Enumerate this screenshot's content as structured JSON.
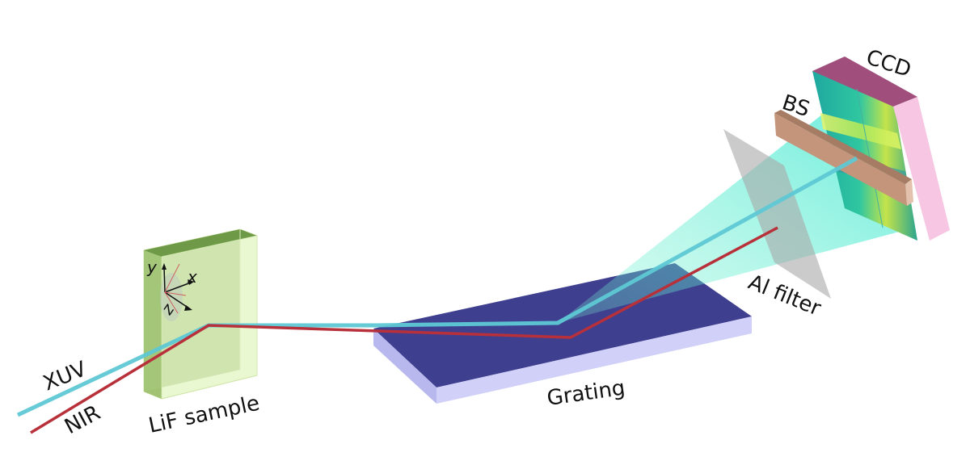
{
  "labels": {
    "xuv": "XUV",
    "nir": "NIR",
    "sample": "LiF sample",
    "grating": "Grating",
    "filter": "Al filter",
    "beamstop": "BS",
    "detector": "CCD",
    "axis_x": "x",
    "axis_y": "y",
    "axis_z": "z"
  },
  "colors": {
    "xuv_beam": "#5ec8d4",
    "nir_beam": "#b8303a",
    "sample_front": "#95b96a",
    "sample_top": "#6e9a48",
    "sample_glass": "#e6f6c8",
    "grating_top": "#3e3e8e",
    "grating_side": "#c7c7f5",
    "filter": "#b0b0b0",
    "beamstop": "#c4957a",
    "ccd_top": "#a04f7c",
    "ccd_side": "#f6c6e2",
    "fan": "#5ef0c8"
  }
}
